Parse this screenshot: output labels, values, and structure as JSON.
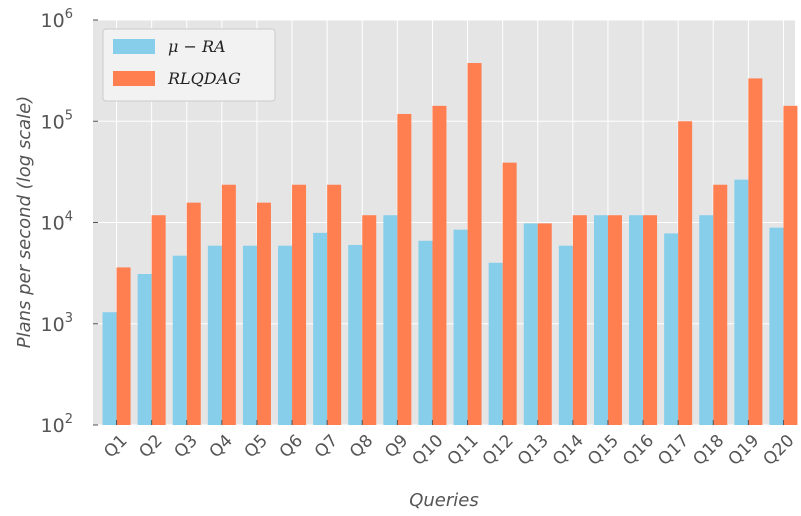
{
  "chart_data": {
    "type": "bar",
    "scale": "log",
    "xlabel": "Queries",
    "ylabel": "Plans per second (log scale)",
    "ylim": [
      100,
      1000000
    ],
    "yticks": [
      {
        "base": "10",
        "exp": "2",
        "value": 100
      },
      {
        "base": "10",
        "exp": "3",
        "value": 1000
      },
      {
        "base": "10",
        "exp": "4",
        "value": 10000
      },
      {
        "base": "10",
        "exp": "5",
        "value": 100000
      },
      {
        "base": "10",
        "exp": "6",
        "value": 1000000
      }
    ],
    "grid": true,
    "legend_position": "top-left",
    "categories": [
      "Q1",
      "Q2",
      "Q3",
      "Q4",
      "Q5",
      "Q6",
      "Q7",
      "Q8",
      "Q9",
      "Q10",
      "Q11",
      "Q12",
      "Q13",
      "Q14",
      "Q15",
      "Q16",
      "Q17",
      "Q18",
      "Q19",
      "Q20"
    ],
    "series": [
      {
        "name": "μ − RA",
        "color": "#87ceeb",
        "values": [
          1300,
          3100,
          4700,
          5900,
          5900,
          5900,
          7900,
          6000,
          11800,
          6600,
          8500,
          4000,
          9800,
          5900,
          11800,
          11800,
          7800,
          11800,
          26500,
          8900
        ]
      },
      {
        "name": "RLQDAG",
        "color": "#ff7f50",
        "values": [
          3600,
          11800,
          15700,
          23600,
          15700,
          23600,
          23600,
          11800,
          118000,
          142000,
          376000,
          39000,
          9800,
          11800,
          11800,
          11800,
          100000,
          23600,
          265000,
          142000
        ]
      }
    ]
  }
}
